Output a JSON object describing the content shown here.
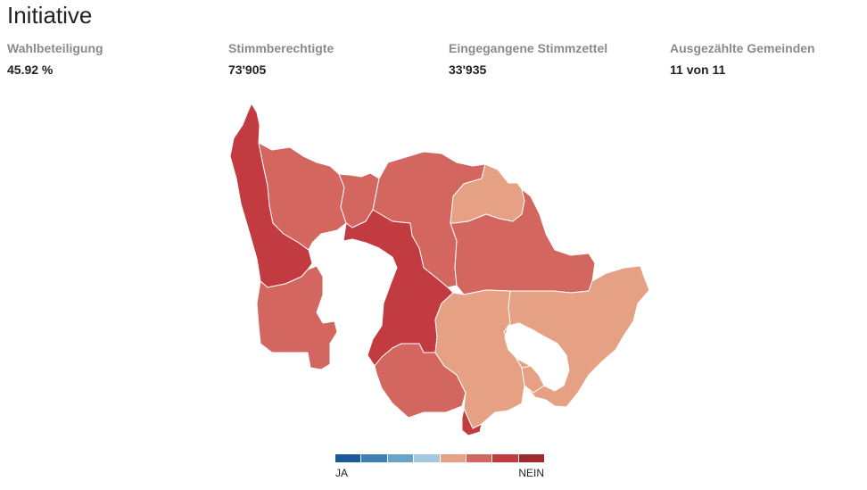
{
  "title": "Initiative",
  "stats": [
    {
      "label": "Wahlbeteiligung",
      "value": "45.92 %"
    },
    {
      "label": "Stimmberechtigte",
      "value": "73'905"
    },
    {
      "label": "Eingegangene Stimmzettel",
      "value": "33'935"
    },
    {
      "label": "Ausgezählte Gemeinden",
      "value": "11 von 11"
    }
  ],
  "legend": {
    "left_label": "JA",
    "right_label": "NEIN",
    "colors": [
      "#1a5a9a",
      "#3b7fb5",
      "#6aa3c9",
      "#a3c8e0",
      "#e6a184",
      "#d3665e",
      "#c13b40",
      "#9e2a2a"
    ]
  },
  "map": {
    "colors": {
      "light": "#e6a184",
      "medium": "#d3665e",
      "dark": "#c13b40"
    }
  }
}
